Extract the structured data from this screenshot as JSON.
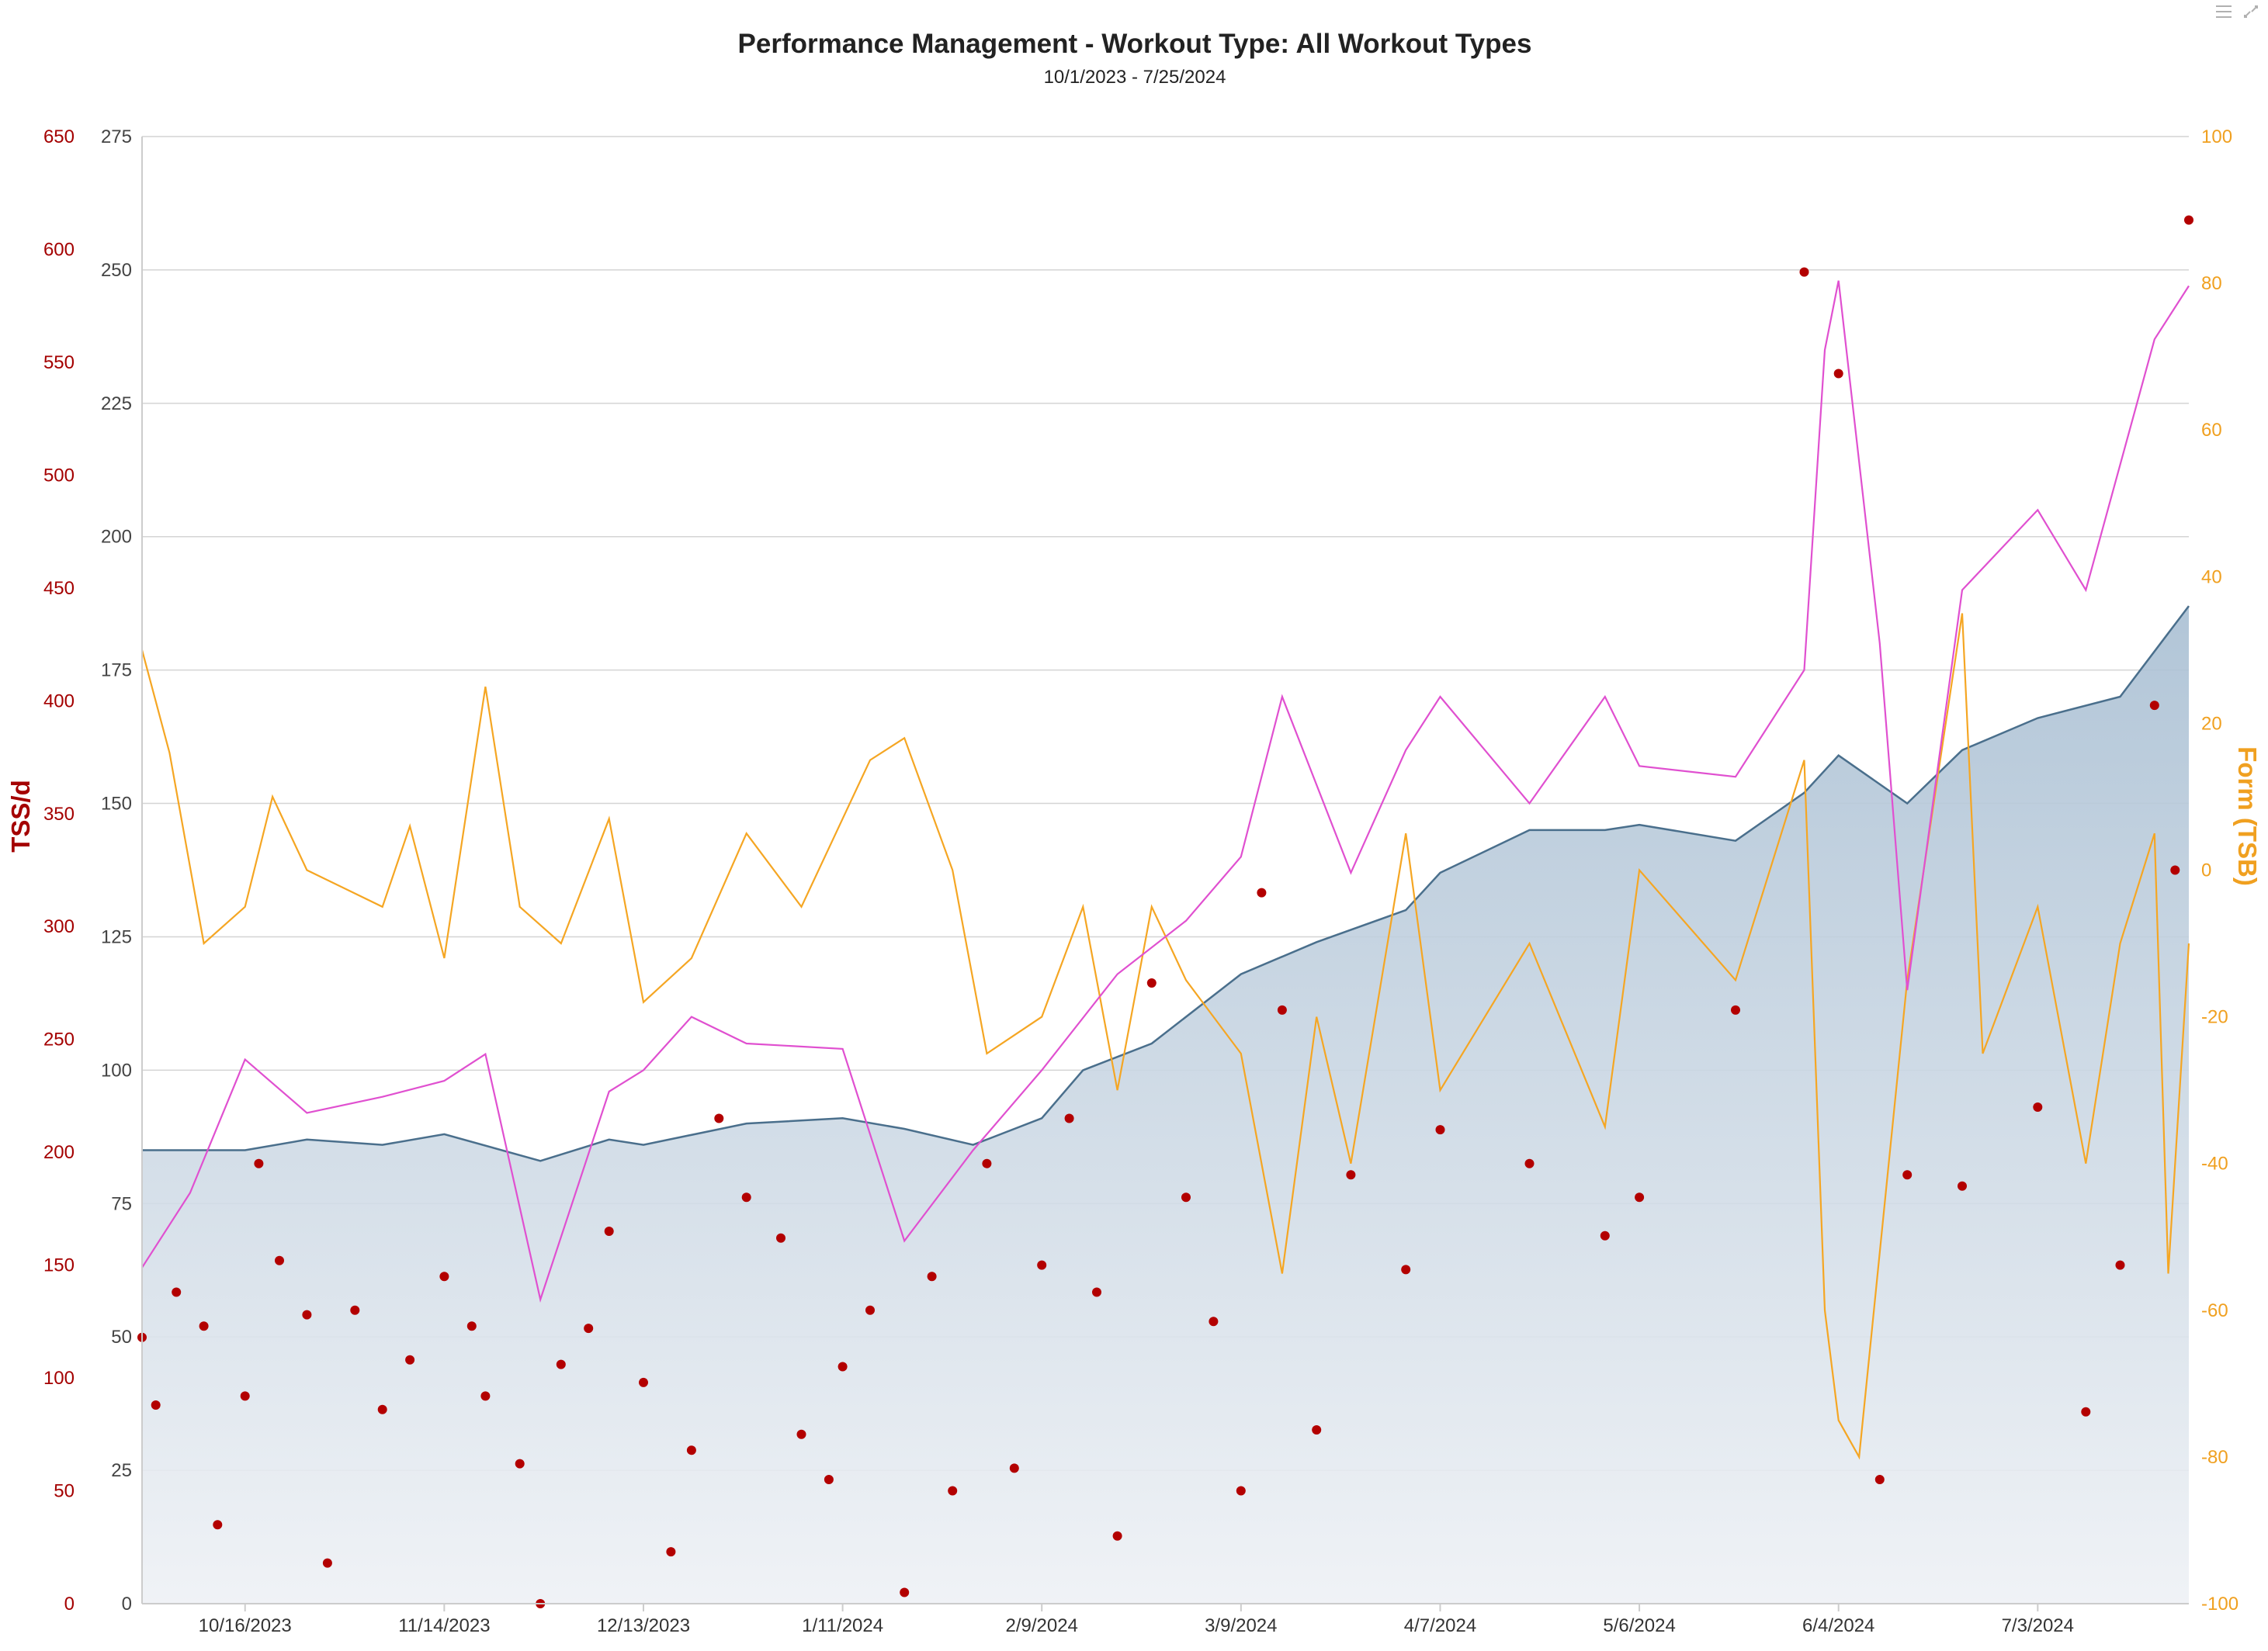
{
  "chart": {
    "title": "Performance Management - Workout Type: All Workout Types",
    "subtitle": "10/1/2023 - 7/25/2024",
    "tss_axis_title": "TSS/d",
    "form_axis_title": "Form (TSB)",
    "tss_ticks": [
      "0",
      "50",
      "100",
      "150",
      "200",
      "250",
      "300",
      "350",
      "400",
      "450",
      "500",
      "550",
      "600",
      "650"
    ],
    "fitness_ticks": [
      "0",
      "25",
      "50",
      "75",
      "100",
      "125",
      "150",
      "175",
      "200",
      "225",
      "250",
      "275"
    ],
    "form_ticks": [
      "-100",
      "-80",
      "-60",
      "-40",
      "-20",
      "0",
      "20",
      "40",
      "60",
      "80",
      "100"
    ],
    "x_ticks": [
      "10/16/2023",
      "11/14/2023",
      "12/13/2023",
      "1/11/2024",
      "2/9/2024",
      "3/9/2024",
      "4/7/2024",
      "5/6/2024",
      "6/4/2024",
      "7/3/2024"
    ],
    "icons": {
      "menu": "hamburger-menu-icon",
      "fullscreen": "fullscreen-icon"
    }
  },
  "colors": {
    "fitness": "#4a6f8c",
    "fatigue": "#e050d0",
    "form": "#f5a623",
    "tss": "#b30000",
    "grid": "#d4d4d4"
  },
  "chart_data": {
    "type": "line",
    "x_range": [
      "10/1/2023",
      "7/25/2024"
    ],
    "ylim_tss": [
      0,
      650
    ],
    "ylim_fitness": [
      0,
      275
    ],
    "ylim_form": [
      -100,
      100
    ],
    "grid": true,
    "legend": "none",
    "series": [
      {
        "axis": "fitness",
        "style": "area",
        "points": [
          [
            "10/1/2023",
            85
          ],
          [
            "10/16/2023",
            85
          ],
          [
            "10/25/2023",
            87
          ],
          [
            "11/5/2023",
            86
          ],
          [
            "11/14/2023",
            88
          ],
          [
            "11/28/2023",
            83
          ],
          [
            "12/8/2023",
            87
          ],
          [
            "12/13/2023",
            86
          ],
          [
            "12/28/2023",
            90
          ],
          [
            "1/11/2024",
            91
          ],
          [
            "1/20/2024",
            89
          ],
          [
            "1/30/2024",
            86
          ],
          [
            "2/9/2024",
            91
          ],
          [
            "2/15/2024",
            100
          ],
          [
            "2/25/2024",
            105
          ],
          [
            "3/9/2024",
            118
          ],
          [
            "3/20/2024",
            124
          ],
          [
            "4/2/2024",
            130
          ],
          [
            "4/7/2024",
            137
          ],
          [
            "4/20/2024",
            145
          ],
          [
            "5/1/2024",
            145
          ],
          [
            "5/6/2024",
            146
          ],
          [
            "5/20/2024",
            143
          ],
          [
            "5/30/2024",
            152
          ],
          [
            "6/4/2024",
            159
          ],
          [
            "6/14/2024",
            150
          ],
          [
            "6/22/2024",
            160
          ],
          [
            "7/3/2024",
            166
          ],
          [
            "7/15/2024",
            170
          ],
          [
            "7/25/2024",
            187
          ]
        ]
      },
      {
        "axis": "fitness",
        "points": [
          [
            "10/1/2023",
            63
          ],
          [
            "10/8/2023",
            77
          ],
          [
            "10/16/2023",
            102
          ],
          [
            "10/25/2023",
            92
          ],
          [
            "11/5/2023",
            95
          ],
          [
            "11/14/2023",
            98
          ],
          [
            "11/20/2023",
            103
          ],
          [
            "11/28/2023",
            57
          ],
          [
            "12/8/2023",
            96
          ],
          [
            "12/13/2023",
            100
          ],
          [
            "12/20/2023",
            110
          ],
          [
            "12/28/2023",
            105
          ],
          [
            "1/11/2024",
            104
          ],
          [
            "1/20/2024",
            68
          ],
          [
            "1/30/2024",
            85
          ],
          [
            "2/9/2024",
            100
          ],
          [
            "2/20/2024",
            118
          ],
          [
            "3/1/2024",
            128
          ],
          [
            "3/9/2024",
            140
          ],
          [
            "3/15/2024",
            170
          ],
          [
            "3/25/2024",
            137
          ],
          [
            "4/2/2024",
            160
          ],
          [
            "4/7/2024",
            170
          ],
          [
            "4/20/2024",
            150
          ],
          [
            "5/1/2024",
            170
          ],
          [
            "5/6/2024",
            157
          ],
          [
            "5/20/2024",
            155
          ],
          [
            "5/30/2024",
            175
          ],
          [
            "6/2/2024",
            235
          ],
          [
            "6/4/2024",
            248
          ],
          [
            "6/10/2024",
            180
          ],
          [
            "6/14/2024",
            115
          ],
          [
            "6/22/2024",
            190
          ],
          [
            "7/3/2024",
            205
          ],
          [
            "7/10/2024",
            190
          ],
          [
            "7/20/2024",
            237
          ],
          [
            "7/25/2024",
            247
          ]
        ]
      },
      {
        "axis": "form",
        "points": [
          [
            "10/1/2023",
            30
          ],
          [
            "10/5/2023",
            16
          ],
          [
            "10/10/2023",
            -10
          ],
          [
            "10/16/2023",
            -5
          ],
          [
            "10/20/2023",
            10
          ],
          [
            "10/25/2023",
            0
          ],
          [
            "11/5/2023",
            -5
          ],
          [
            "11/9/2023",
            6
          ],
          [
            "11/14/2023",
            -12
          ],
          [
            "11/20/2023",
            25
          ],
          [
            "11/25/2023",
            -5
          ],
          [
            "12/1/2023",
            -10
          ],
          [
            "12/8/2023",
            7
          ],
          [
            "12/13/2023",
            -18
          ],
          [
            "12/20/2023",
            -12
          ],
          [
            "12/28/2023",
            5
          ],
          [
            "1/5/2024",
            -5
          ],
          [
            "1/11/2024",
            7
          ],
          [
            "1/15/2024",
            15
          ],
          [
            "1/20/2024",
            18
          ],
          [
            "1/27/2024",
            0
          ],
          [
            "2/1/2024",
            -25
          ],
          [
            "2/9/2024",
            -20
          ],
          [
            "2/15/2024",
            -5
          ],
          [
            "2/20/2024",
            -30
          ],
          [
            "2/25/2024",
            -5
          ],
          [
            "3/1/2024",
            -15
          ],
          [
            "3/9/2024",
            -25
          ],
          [
            "3/15/2024",
            -55
          ],
          [
            "3/20/2024",
            -20
          ],
          [
            "3/25/2024",
            -40
          ],
          [
            "4/2/2024",
            5
          ],
          [
            "4/7/2024",
            -30
          ],
          [
            "4/20/2024",
            -10
          ],
          [
            "5/1/2024",
            -35
          ],
          [
            "5/6/2024",
            0
          ],
          [
            "5/20/2024",
            -15
          ],
          [
            "5/30/2024",
            15
          ],
          [
            "6/2/2024",
            -60
          ],
          [
            "6/4/2024",
            -75
          ],
          [
            "6/7/2024",
            -80
          ],
          [
            "6/14/2024",
            -15
          ],
          [
            "6/22/2024",
            35
          ],
          [
            "6/25/2024",
            -25
          ],
          [
            "7/3/2024",
            -5
          ],
          [
            "7/10/2024",
            -40
          ],
          [
            "7/15/2024",
            -10
          ],
          [
            "7/20/2024",
            5
          ],
          [
            "7/22/2024",
            -55
          ],
          [
            "7/25/2024",
            -10
          ]
        ]
      },
      {
        "axis": "tss",
        "style": "scatter",
        "points": [
          [
            "10/1/2023",
            118
          ],
          [
            "10/3/2023",
            88
          ],
          [
            "10/6/2023",
            138
          ],
          [
            "10/10/2023",
            123
          ],
          [
            "10/12/2023",
            35
          ],
          [
            "10/16/2023",
            92
          ],
          [
            "10/18/2023",
            195
          ],
          [
            "10/21/2023",
            152
          ],
          [
            "10/25/2023",
            128
          ],
          [
            "10/28/2023",
            18
          ],
          [
            "11/1/2023",
            130
          ],
          [
            "11/5/2023",
            86
          ],
          [
            "11/9/2023",
            108
          ],
          [
            "11/14/2023",
            145
          ],
          [
            "11/18/2023",
            123
          ],
          [
            "11/20/2023",
            92
          ],
          [
            "11/25/2023",
            62
          ],
          [
            "11/28/2023",
            0
          ],
          [
            "12/1/2023",
            106
          ],
          [
            "12/5/2023",
            122
          ],
          [
            "12/8/2023",
            165
          ],
          [
            "12/13/2023",
            98
          ],
          [
            "12/17/2023",
            23
          ],
          [
            "12/20/2023",
            68
          ],
          [
            "12/24/2023",
            215
          ],
          [
            "12/28/2023",
            180
          ],
          [
            "1/2/2024",
            162
          ],
          [
            "1/5/2024",
            75
          ],
          [
            "1/9/2024",
            55
          ],
          [
            "1/11/2024",
            105
          ],
          [
            "1/15/2024",
            130
          ],
          [
            "1/20/2024",
            5
          ],
          [
            "1/24/2024",
            145
          ],
          [
            "1/27/2024",
            50
          ],
          [
            "2/1/2024",
            195
          ],
          [
            "2/5/2024",
            60
          ],
          [
            "2/9/2024",
            150
          ],
          [
            "2/13/2024",
            215
          ],
          [
            "2/17/2024",
            138
          ],
          [
            "2/20/2024",
            30
          ],
          [
            "2/25/2024",
            275
          ],
          [
            "3/1/2024",
            180
          ],
          [
            "3/5/2024",
            125
          ],
          [
            "3/9/2024",
            50
          ],
          [
            "3/12/2024",
            315
          ],
          [
            "3/15/2024",
            263
          ],
          [
            "3/20/2024",
            77
          ],
          [
            "3/25/2024",
            190
          ],
          [
            "4/2/2024",
            148
          ],
          [
            "4/7/2024",
            210
          ],
          [
            "4/20/2024",
            195
          ],
          [
            "5/1/2024",
            163
          ],
          [
            "5/6/2024",
            180
          ],
          [
            "5/20/2024",
            263
          ],
          [
            "5/30/2024",
            590
          ],
          [
            "6/4/2024",
            545
          ],
          [
            "6/10/2024",
            55
          ],
          [
            "6/14/2024",
            190
          ],
          [
            "6/22/2024",
            185
          ],
          [
            "7/3/2024",
            220
          ],
          [
            "7/10/2024",
            85
          ],
          [
            "7/15/2024",
            150
          ],
          [
            "7/20/2024",
            398
          ],
          [
            "7/23/2024",
            325
          ],
          [
            "7/25/2024",
            613
          ]
        ]
      }
    ]
  }
}
